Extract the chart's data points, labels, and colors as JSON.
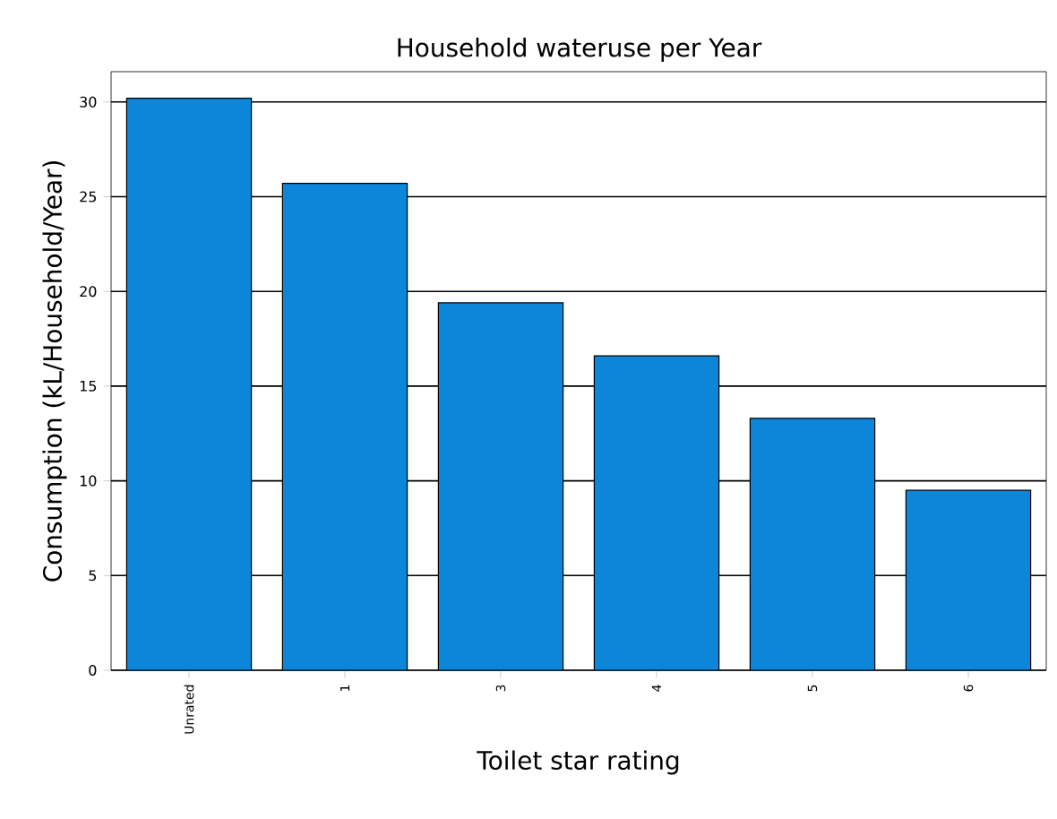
{
  "chart_data": {
    "type": "bar",
    "title": "Household wateruse per Year",
    "xlabel": "Toilet star rating",
    "ylabel": "Consumption (kL/Household/Year)",
    "categories": [
      "Unrated",
      "1",
      "3",
      "4",
      "5",
      "6"
    ],
    "values": [
      30.2,
      25.7,
      19.4,
      16.6,
      13.3,
      9.5
    ],
    "color": "#0b86d9",
    "ylim": [
      0,
      31.6
    ],
    "yticks": [
      0,
      5,
      10,
      15,
      20,
      25,
      30
    ],
    "grid": "y"
  }
}
